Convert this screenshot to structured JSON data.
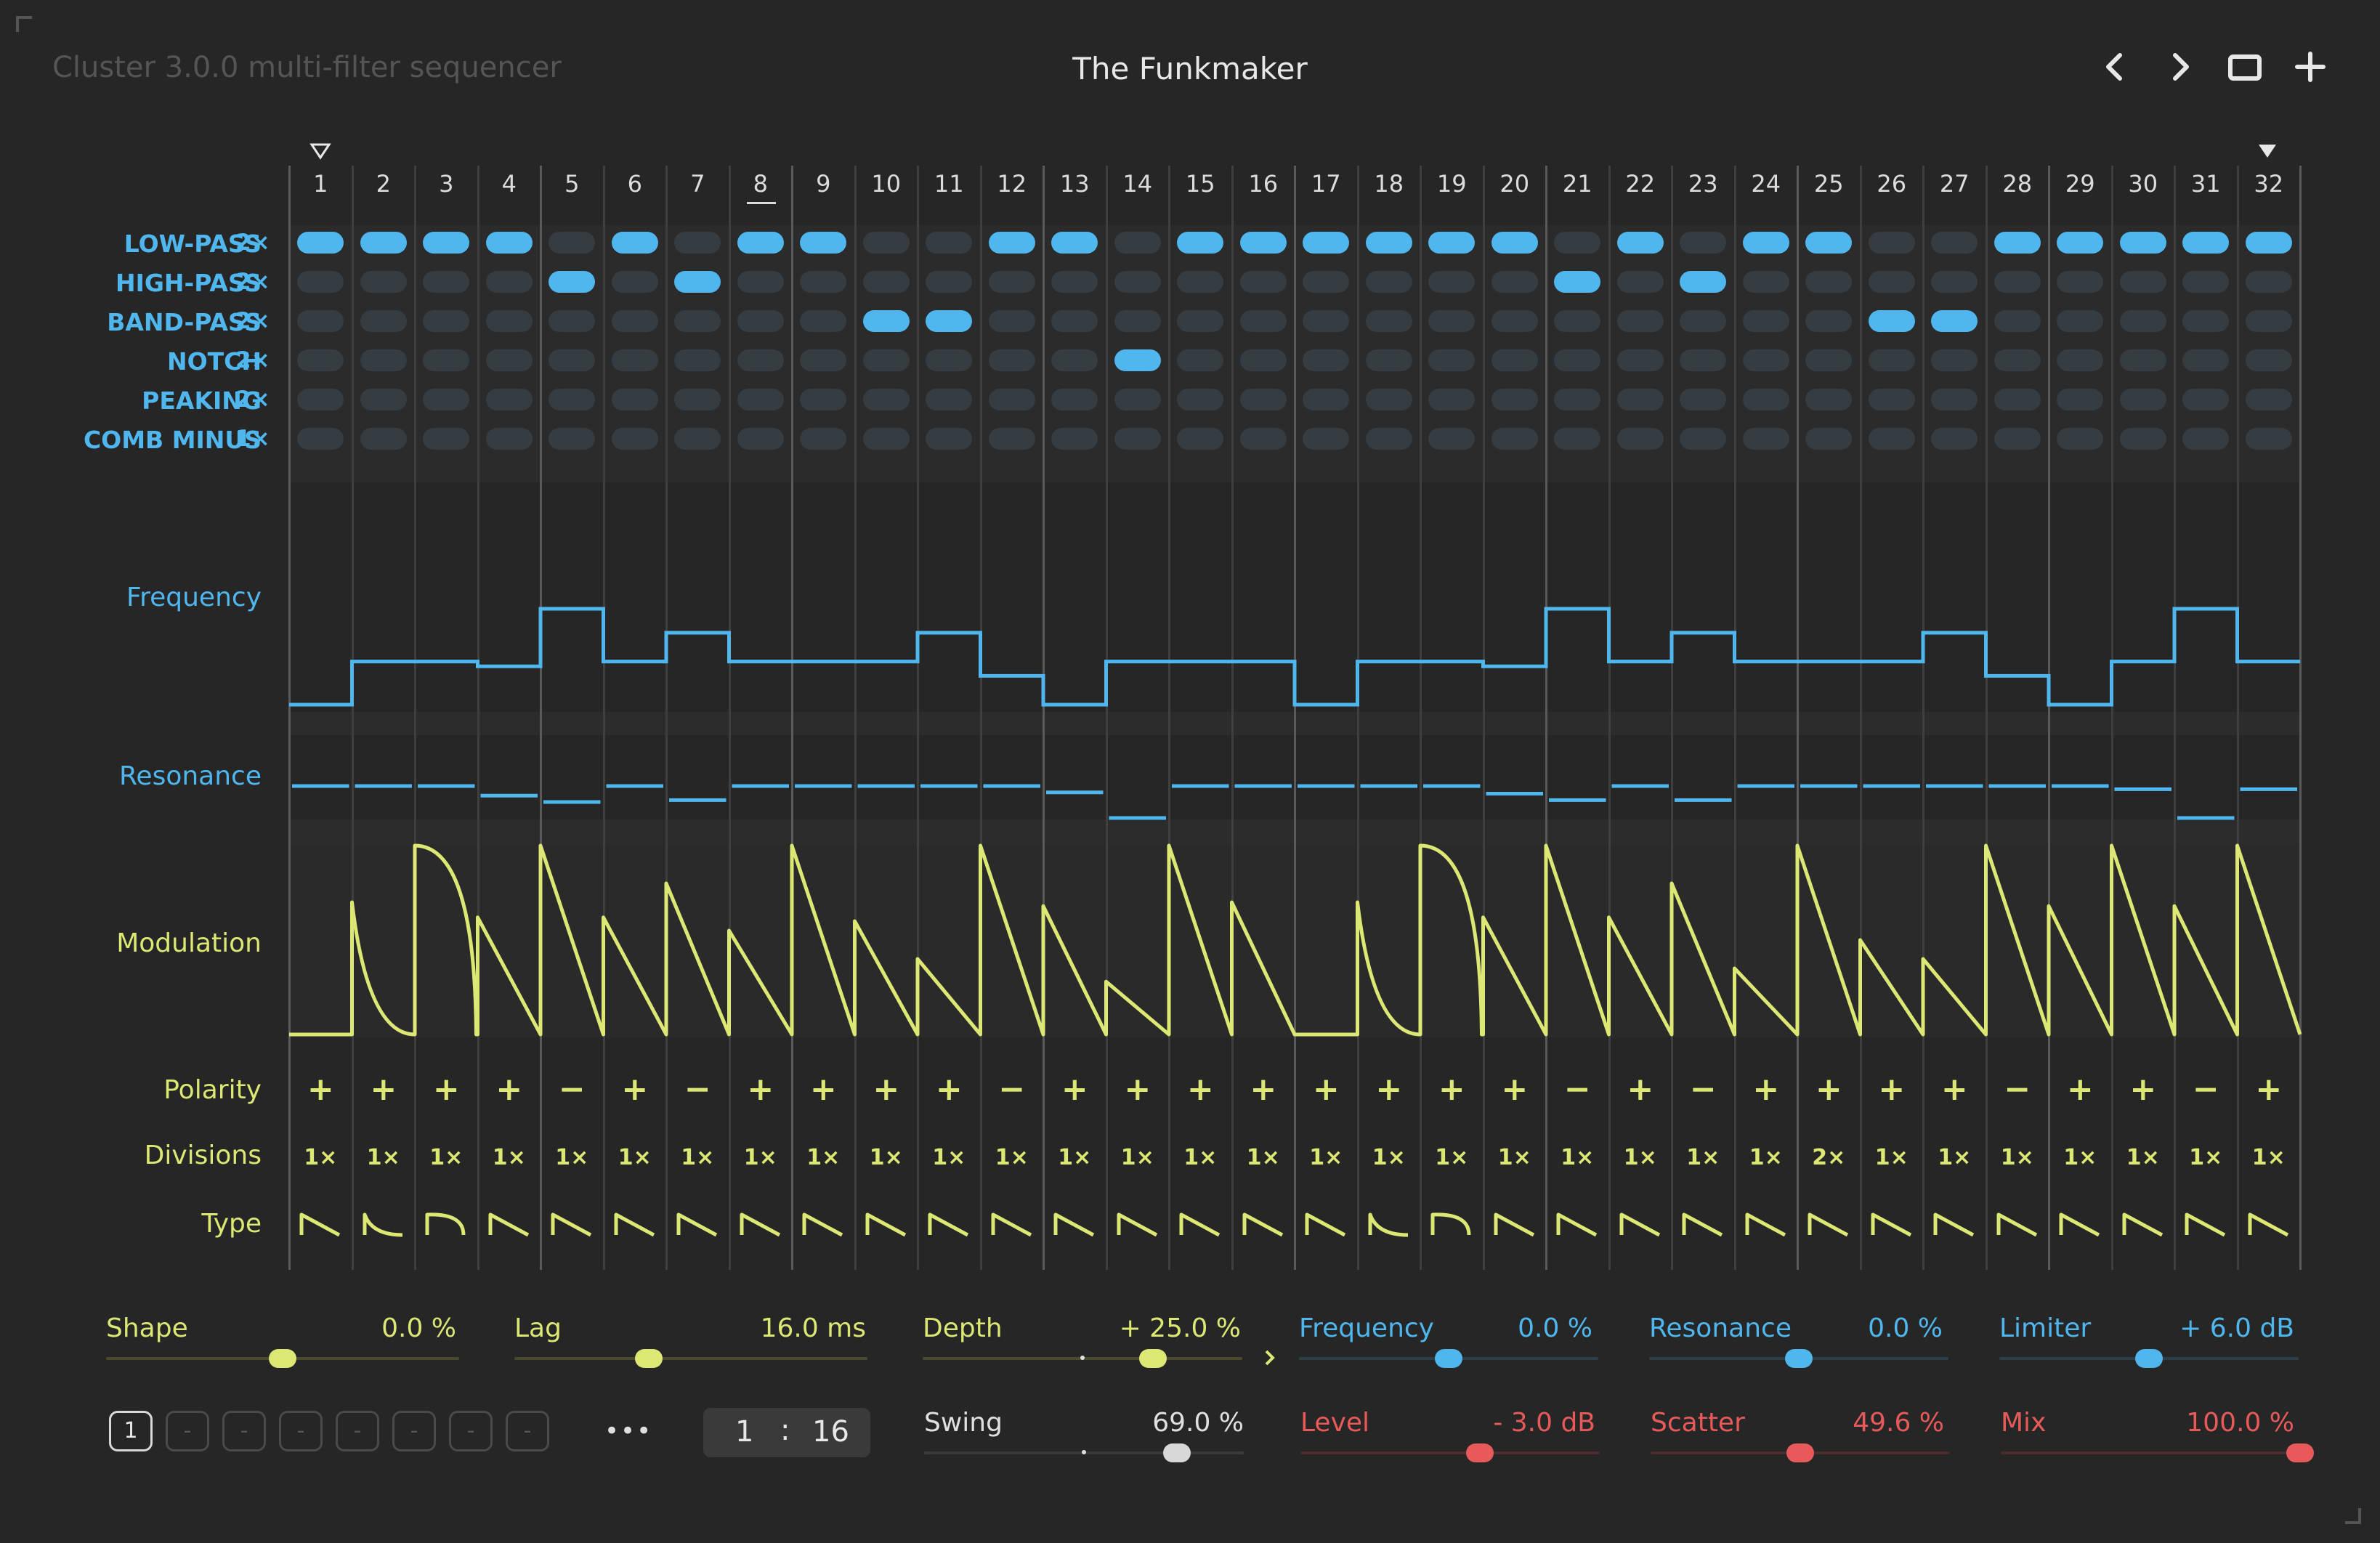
{
  "header": {
    "app_title": "Cluster 3.0.0 multi-filter sequencer",
    "preset_name": "The Funkmaker",
    "icons": [
      "chevron-left-icon",
      "chevron-right-icon",
      "window-icon",
      "plus-icon"
    ]
  },
  "steps": [
    "1",
    "2",
    "3",
    "4",
    "5",
    "6",
    "7",
    "8",
    "9",
    "10",
    "11",
    "12",
    "13",
    "14",
    "15",
    "16",
    "17",
    "18",
    "19",
    "20",
    "21",
    "22",
    "23",
    "24",
    "25",
    "26",
    "27",
    "28",
    "29",
    "30",
    "31",
    "32"
  ],
  "current_step": 8,
  "loop_start_step": 1,
  "loop_end_step": 32,
  "filters": [
    {
      "name": "LOW-PASS",
      "mult": "2×"
    },
    {
      "name": "HIGH-PASS",
      "mult": "2×"
    },
    {
      "name": "BAND-PASS",
      "mult": "2×"
    },
    {
      "name": "NOTCH",
      "mult": "2×"
    },
    {
      "name": "PEAKING",
      "mult": "2×"
    },
    {
      "name": "COMB MINUS",
      "mult": "1×"
    }
  ],
  "filter_selection": [
    0,
    0,
    0,
    0,
    1,
    0,
    1,
    0,
    0,
    2,
    2,
    0,
    0,
    3,
    0,
    0,
    0,
    0,
    0,
    0,
    1,
    0,
    1,
    0,
    0,
    2,
    2,
    0,
    0,
    0,
    0,
    0
  ],
  "lanes": {
    "frequency_label": "Frequency",
    "resonance_label": "Resonance",
    "modulation_label": "Modulation",
    "polarity_label": "Polarity",
    "divisions_label": "Divisions",
    "type_label": "Type"
  },
  "frequency_values": [
    0.0,
    0.45,
    0.45,
    0.4,
    1.0,
    0.45,
    0.75,
    0.45,
    0.45,
    0.45,
    0.75,
    0.3,
    0.0,
    0.45,
    0.45,
    0.45,
    0.0,
    0.45,
    0.45,
    0.4,
    1.0,
    0.45,
    0.75,
    0.45,
    0.45,
    0.45,
    0.75,
    0.3,
    0.0,
    0.45,
    1.0,
    0.45
  ],
  "resonance_values": [
    0.5,
    0.5,
    0.5,
    0.35,
    0.25,
    0.5,
    0.28,
    0.5,
    0.5,
    0.5,
    0.5,
    0.5,
    0.4,
    0.0,
    0.5,
    0.5,
    0.5,
    0.5,
    0.5,
    0.38,
    0.28,
    0.5,
    0.28,
    0.5,
    0.5,
    0.5,
    0.5,
    0.5,
    0.5,
    0.45,
    0.0,
    0.45
  ],
  "modulation_peaks": [
    0.0,
    0.7,
    1.0,
    0.62,
    1.0,
    0.62,
    0.8,
    0.55,
    1.0,
    0.6,
    0.4,
    1.0,
    0.68,
    0.28,
    1.0,
    0.7,
    0.0,
    0.7,
    1.0,
    0.62,
    1.0,
    0.62,
    0.8,
    0.35,
    1.0,
    0.5,
    0.4,
    1.0,
    0.68,
    1.0,
    0.68,
    1.0
  ],
  "polarity": [
    "+",
    "+",
    "+",
    "+",
    "−",
    "+",
    "−",
    "+",
    "+",
    "+",
    "+",
    "−",
    "+",
    "+",
    "+",
    "+",
    "+",
    "+",
    "+",
    "+",
    "−",
    "+",
    "−",
    "+",
    "+",
    "+",
    "+",
    "−",
    "+",
    "+",
    "−",
    "+"
  ],
  "divisions": [
    "1×",
    "1×",
    "1×",
    "1×",
    "1×",
    "1×",
    "1×",
    "1×",
    "1×",
    "1×",
    "1×",
    "1×",
    "1×",
    "1×",
    "1×",
    "1×",
    "1×",
    "1×",
    "1×",
    "1×",
    "1×",
    "1×",
    "1×",
    "1×",
    "2×",
    "1×",
    "1×",
    "1×",
    "1×",
    "1×",
    "1×",
    "1×"
  ],
  "types": [
    "saw",
    "exp",
    "arch",
    "saw",
    "saw",
    "saw",
    "saw",
    "saw",
    "saw",
    "saw",
    "saw",
    "saw",
    "saw",
    "saw",
    "saw",
    "saw",
    "saw",
    "exp",
    "arch",
    "saw",
    "saw",
    "saw",
    "saw",
    "saw",
    "saw",
    "saw",
    "saw",
    "saw",
    "saw",
    "saw",
    "saw",
    "saw"
  ],
  "controls": {
    "shape": {
      "label": "Shape",
      "value": "0.0 %",
      "level": 0.5
    },
    "lag": {
      "label": "Lag",
      "value": "16.0 ms",
      "level": 0.38
    },
    "depth": {
      "label": "Depth",
      "value": "+ 25.0 %",
      "level": 0.72
    },
    "frequency": {
      "label": "Frequency",
      "value": "0.0 %",
      "level": 0.5
    },
    "resonance": {
      "label": "Resonance",
      "value": "0.0 %",
      "level": 0.5
    },
    "limiter": {
      "label": "Limiter",
      "value": "+ 6.0 dB",
      "level": 0.5
    },
    "swing": {
      "label": "Swing",
      "value": "69.0 %",
      "level": 0.79
    },
    "level": {
      "label": "Level",
      "value": "- 3.0 dB",
      "level": 0.6
    },
    "scatter": {
      "label": "Scatter",
      "value": "49.6 %",
      "level": 0.5
    },
    "mix": {
      "label": "Mix",
      "value": "100.0 %",
      "level": 1.0
    }
  },
  "presets": [
    "1",
    "-",
    "-",
    "-",
    "-",
    "-",
    "-",
    "-"
  ],
  "more_label": "•••",
  "time_sig": {
    "num": "1",
    "sep": ":",
    "den": "16"
  },
  "colors": {
    "blue": "#4fb6ee",
    "yellow": "#dde774",
    "red": "#e85a5a",
    "bg": "#262626"
  }
}
